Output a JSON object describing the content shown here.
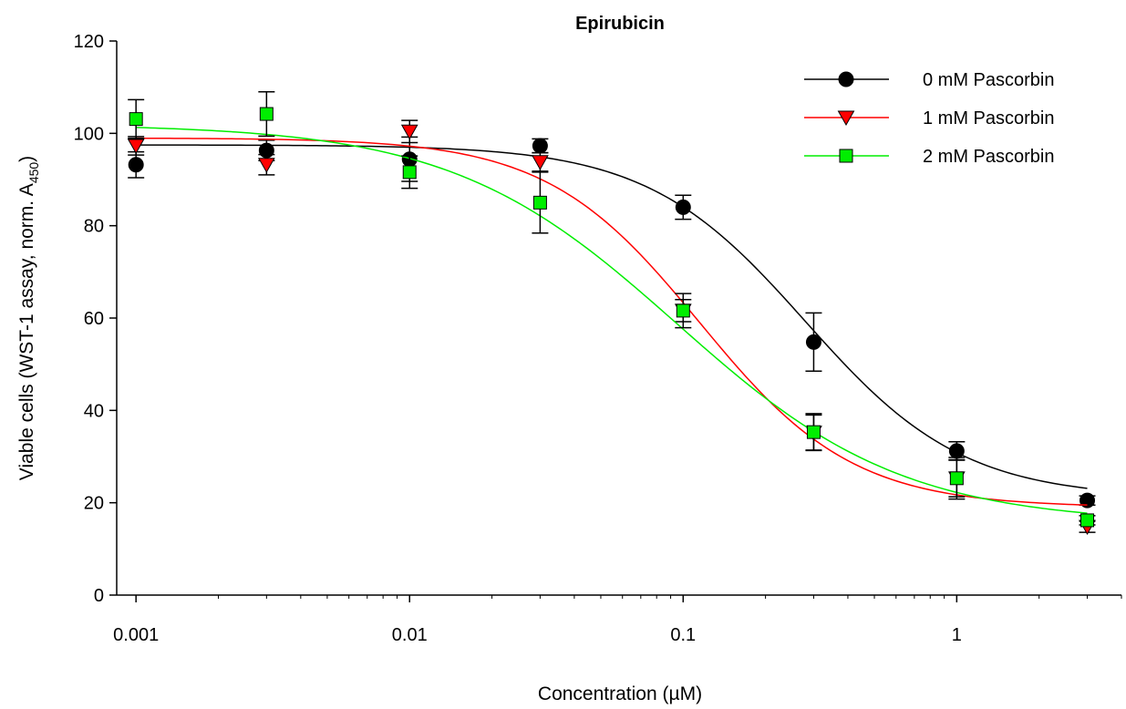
{
  "chart_data": {
    "type": "scatter",
    "title": "Epirubicin",
    "xlabel": "Concentration (µM)",
    "ylabel": {
      "main": "Viable cells (WST-1 assay, norm. A",
      "subscript": "450",
      "close": ")"
    },
    "xscale": "log",
    "xlim": [
      0.00085,
      4.0
    ],
    "ylim": [
      0,
      120
    ],
    "x_ticks": [
      0.001,
      0.01,
      0.1,
      1
    ],
    "x_tick_labels": [
      "0.001",
      "0.01",
      "0.1",
      "1"
    ],
    "y_ticks": [
      0,
      20,
      40,
      60,
      80,
      100,
      120
    ],
    "y_tick_labels": [
      "0",
      "20",
      "40",
      "60",
      "80",
      "100",
      "120"
    ],
    "grid": false,
    "legend_position": "top-right",
    "series": [
      {
        "name": "0 mM Pascorbin",
        "marker": "circle",
        "color": "#000000",
        "fill": "#000000",
        "x": [
          0.001,
          0.003,
          0.01,
          0.03,
          0.1,
          0.3,
          1,
          3
        ],
        "y": [
          93.2,
          96.3,
          94.4,
          97.3,
          84.0,
          54.8,
          31.2,
          20.5
        ],
        "err": [
          2.8,
          2.2,
          4.8,
          1.5,
          2.6,
          6.3,
          2.0,
          1.0
        ],
        "fit": {
          "bottom": 21.0,
          "top": 97.5,
          "ec50": 0.28,
          "hill": 1.5
        }
      },
      {
        "name": "1 mM Pascorbin",
        "marker": "triangle-down",
        "color": "#ff0000",
        "fill": "#ff0000",
        "x": [
          0.001,
          0.003,
          0.01,
          0.03,
          0.1,
          0.3,
          1,
          3
        ],
        "y": [
          97.3,
          93.2,
          100.4,
          93.8,
          61.6,
          35.2,
          25.3,
          14.8
        ],
        "err": [
          2.0,
          2.2,
          2.4,
          2.0,
          2.4,
          3.8,
          4.5,
          1.2
        ],
        "fit": {
          "bottom": 19.0,
          "top": 99.0,
          "ec50": 0.115,
          "hill": 1.55
        }
      },
      {
        "name": "2 mM Pascorbin",
        "marker": "square",
        "color": "#00ee00",
        "fill": "#00ee00",
        "x": [
          0.001,
          0.003,
          0.01,
          0.03,
          0.1,
          0.3,
          1,
          3
        ],
        "y": [
          103.1,
          104.2,
          91.6,
          85.0,
          61.6,
          35.3,
          25.3,
          16.2
        ],
        "err": [
          4.2,
          4.8,
          3.5,
          6.6,
          3.7,
          4.0,
          4.0,
          1.0
        ],
        "fit": {
          "bottom": 15.5,
          "top": 102.0,
          "ec50": 0.095,
          "hill": 1.05
        }
      }
    ]
  }
}
